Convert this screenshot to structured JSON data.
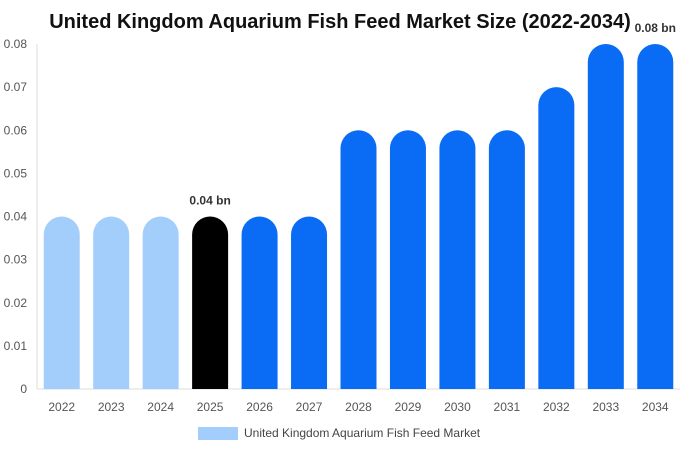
{
  "chart_data": {
    "type": "bar",
    "title": "United Kingdom Aquarium Fish Feed Market Size (2022-2034)",
    "categories": [
      "2022",
      "2023",
      "2024",
      "2025",
      "2026",
      "2027",
      "2028",
      "2029",
      "2030",
      "2031",
      "2032",
      "2033",
      "2034"
    ],
    "series": [
      {
        "name": "United Kingdom Aquarium Fish Feed Market",
        "values": [
          0.04,
          0.04,
          0.04,
          0.04,
          0.04,
          0.04,
          0.06,
          0.06,
          0.06,
          0.06,
          0.07,
          0.08,
          0.08
        ]
      }
    ],
    "bar_colors": [
      "#a3cefc",
      "#a3cefc",
      "#a3cefc",
      "#000000",
      "#0a6cf5",
      "#0a6cf5",
      "#0a6cf5",
      "#0a6cf5",
      "#0a6cf5",
      "#0a6cf5",
      "#0a6cf5",
      "#0a6cf5",
      "#0a6cf5"
    ],
    "data_labels": [
      {
        "index": 3,
        "text": "0.04 bn"
      },
      {
        "index": 12,
        "text": "0.08 bn"
      }
    ],
    "yticks": [
      "0",
      "0.01",
      "0.02",
      "0.03",
      "0.04",
      "0.05",
      "0.06",
      "0.07",
      "0.08"
    ],
    "ylim": [
      0,
      0.08
    ],
    "grid": false,
    "legend_position": "bottom",
    "legend_color": "#a3cefc"
  }
}
